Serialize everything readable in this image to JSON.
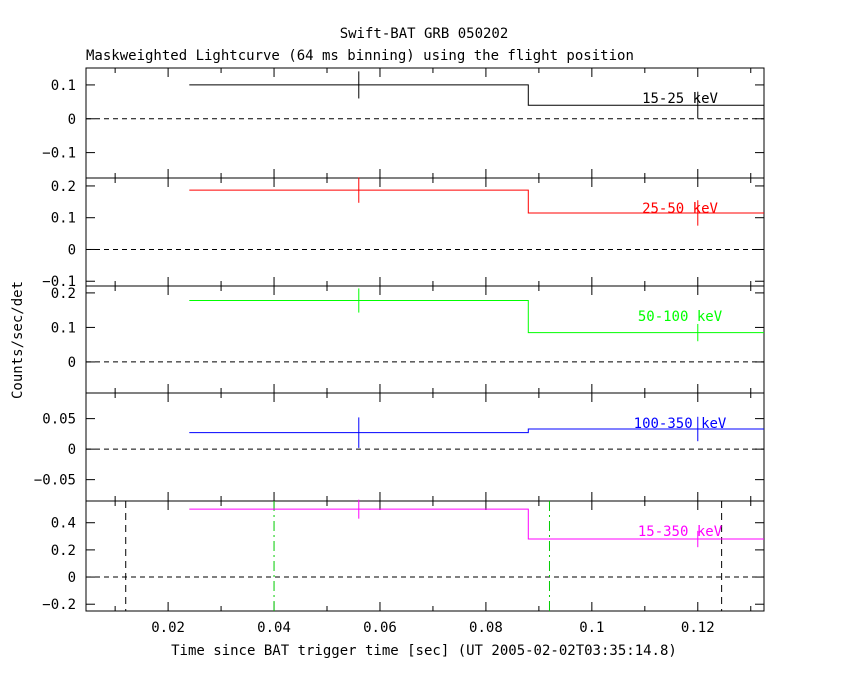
{
  "chart_data": {
    "type": "line",
    "title": "Swift-BAT GRB 050202",
    "subtitle": "Maskweighted Lightcurve (64 ms binning) using the flight position",
    "xlabel": "Time since BAT trigger time [sec] (UT 2005-02-02T03:35:14.8)",
    "ylabel": "Counts/sec/det",
    "xlim": [
      0.0045,
      0.1325
    ],
    "xticks": [
      0.02,
      0.04,
      0.06,
      0.08,
      0.1,
      0.12
    ],
    "xtick_labels": [
      "0.02",
      "0.04",
      "0.06",
      "0.08",
      "0.1",
      "0.12"
    ],
    "panels": [
      {
        "label": "15-25 keV",
        "color": "#000000",
        "ylim": [
          -0.175,
          0.15
        ],
        "yticks": [
          0.1,
          0,
          -0.1
        ],
        "ytick_labels": [
          "0.1",
          "0",
          "−0.1"
        ],
        "bins": [
          {
            "x0": 0.024,
            "x1": 0.088,
            "y": 0.1,
            "xc": 0.056,
            "err": 0.04
          },
          {
            "x0": 0.088,
            "x1": 0.1325,
            "y": 0.04,
            "xc": 0.12,
            "err": 0.04
          }
        ]
      },
      {
        "label": "25-50 keV",
        "color": "#ff0000",
        "ylim": [
          -0.115,
          0.225
        ],
        "yticks": [
          0.2,
          0.1,
          0,
          -0.1
        ],
        "ytick_labels": [
          "0.2",
          "0.1",
          "0",
          "−0.1"
        ],
        "bins": [
          {
            "x0": 0.024,
            "x1": 0.088,
            "y": 0.187,
            "xc": 0.056,
            "err": 0.04
          },
          {
            "x0": 0.088,
            "x1": 0.1325,
            "y": 0.115,
            "xc": 0.12,
            "err": 0.04
          }
        ]
      },
      {
        "label": "50-100 keV",
        "color": "#00ff00",
        "ylim": [
          -0.09,
          0.22
        ],
        "yticks": [
          0.2,
          0.1,
          0
        ],
        "ytick_labels": [
          "0.2",
          "0.1",
          "0"
        ],
        "bins": [
          {
            "x0": 0.024,
            "x1": 0.088,
            "y": 0.178,
            "xc": 0.056,
            "err": 0.035
          },
          {
            "x0": 0.088,
            "x1": 0.1325,
            "y": 0.085,
            "xc": 0.12,
            "err": 0.025
          }
        ]
      },
      {
        "label": "100-350 keV",
        "color": "#0000ff",
        "ylim": [
          -0.085,
          0.092
        ],
        "yticks": [
          0.05,
          0,
          -0.05
        ],
        "ytick_labels": [
          "0.05",
          "0",
          "−0.05"
        ],
        "bins": [
          {
            "x0": 0.024,
            "x1": 0.088,
            "y": 0.027,
            "xc": 0.056,
            "err": 0.025
          },
          {
            "x0": 0.088,
            "x1": 0.1325,
            "y": 0.033,
            "xc": 0.12,
            "err": 0.02
          }
        ]
      },
      {
        "label": "15-350 keV",
        "color": "#ff00ff",
        "ylim": [
          -0.25,
          0.56
        ],
        "yticks": [
          0.4,
          0.2,
          0,
          -0.2
        ],
        "ytick_labels": [
          "0.4",
          "0.2",
          "0",
          "−0.2"
        ],
        "bins": [
          {
            "x0": 0.024,
            "x1": 0.088,
            "y": 0.5,
            "xc": 0.056,
            "err": 0.07
          },
          {
            "x0": 0.088,
            "x1": 0.1325,
            "y": 0.28,
            "xc": 0.12,
            "err": 0.06
          }
        ],
        "vlines_black_dashed": [
          0.012,
          0.1245
        ],
        "vlines_green_dashdot": [
          0.04,
          0.092
        ]
      }
    ]
  }
}
